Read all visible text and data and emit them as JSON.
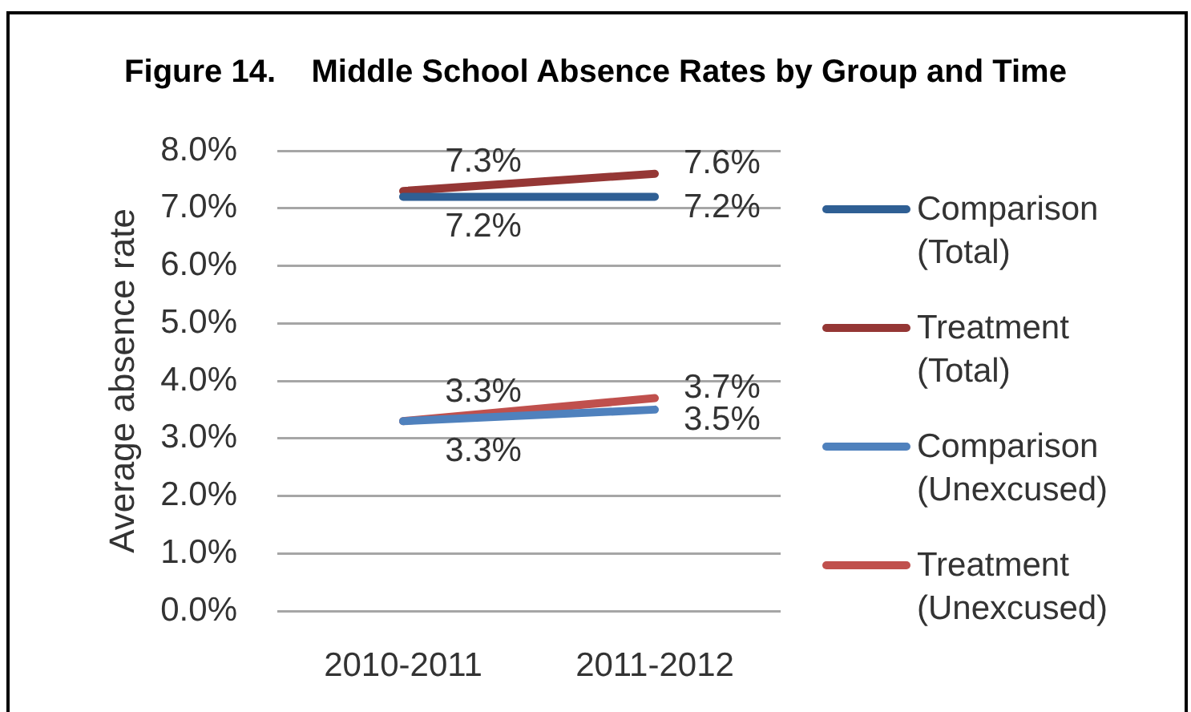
{
  "chart_data": {
    "type": "line",
    "title": "Figure 14.    Middle School Absence Rates by Group and Time",
    "ylabel": "Average absence rate",
    "categories": [
      "2010-2011",
      "2011-2012"
    ],
    "series": [
      {
        "name": "Comparison (Total)",
        "color": "#2f5f94",
        "values": [
          7.2,
          7.2
        ],
        "value_labels": [
          "7.2%",
          "7.2%"
        ]
      },
      {
        "name": "Treatment (Total)",
        "color": "#953735",
        "values": [
          7.3,
          7.6
        ],
        "value_labels": [
          "7.3%",
          "7.6%"
        ]
      },
      {
        "name": "Comparison (Unexcused)",
        "color": "#4f81bd",
        "values": [
          3.3,
          3.5
        ],
        "value_labels": [
          "3.3%",
          "3.5%"
        ]
      },
      {
        "name": "Treatment (Unexcused)",
        "color": "#c0504d",
        "values": [
          3.3,
          3.7
        ],
        "value_labels": [
          "3.3%",
          "3.7%"
        ]
      }
    ],
    "ylim": [
      0,
      8
    ],
    "yticks": [
      {
        "value": 0,
        "label": "0.0%"
      },
      {
        "value": 1,
        "label": "1.0%"
      },
      {
        "value": 2,
        "label": "2.0%"
      },
      {
        "value": 3,
        "label": "3.0%"
      },
      {
        "value": 4,
        "label": "4.0%"
      },
      {
        "value": 5,
        "label": "5.0%"
      },
      {
        "value": 6,
        "label": "6.0%"
      },
      {
        "value": 7,
        "label": "7.0%"
      },
      {
        "value": 8,
        "label": "8.0%"
      }
    ],
    "grid": "y",
    "legend": "right",
    "marker": "none"
  }
}
